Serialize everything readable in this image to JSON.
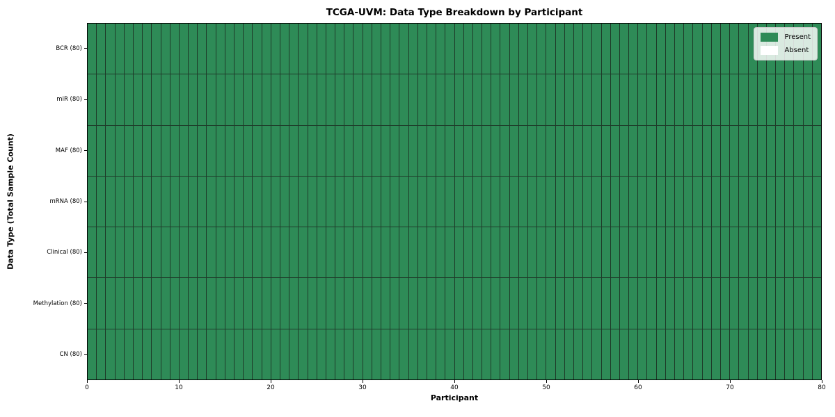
{
  "chart_data": {
    "type": "heatmap",
    "title": "TCGA-UVM: Data Type Breakdown by Participant",
    "xlabel": "Participant",
    "ylabel": "Data Type (Total Sample Count)",
    "xlim": [
      0,
      80
    ],
    "x_ticks": [
      0,
      10,
      20,
      30,
      40,
      50,
      60,
      70,
      80
    ],
    "n_participants": 80,
    "rows": [
      {
        "label": "BCR (80)",
        "data_type": "BCR",
        "total_samples": 80,
        "present_count": 80,
        "absent_count": 0
      },
      {
        "label": "miR (80)",
        "data_type": "miR",
        "total_samples": 80,
        "present_count": 80,
        "absent_count": 0
      },
      {
        "label": "MAF (80)",
        "data_type": "MAF",
        "total_samples": 80,
        "present_count": 80,
        "absent_count": 0
      },
      {
        "label": "mRNA (80)",
        "data_type": "mRNA",
        "total_samples": 80,
        "present_count": 80,
        "absent_count": 0
      },
      {
        "label": "Clinical (80)",
        "data_type": "Clinical",
        "total_samples": 80,
        "present_count": 80,
        "absent_count": 0
      },
      {
        "label": "Methylation (80)",
        "data_type": "Methylation",
        "total_samples": 80,
        "present_count": 80,
        "absent_count": 0
      },
      {
        "label": "CN (80)",
        "data_type": "CN",
        "total_samples": 80,
        "present_count": 80,
        "absent_count": 0
      }
    ],
    "legend": {
      "position": "upper right",
      "entries": [
        {
          "label": "Present",
          "color": "#2e8b57"
        },
        {
          "label": "Absent",
          "color": "#ffffff"
        }
      ]
    },
    "colors": {
      "present": "#2e8b57",
      "absent": "#ffffff",
      "cell_edge": "#1e3a29",
      "spine": "#000000",
      "background": "#ffffff"
    }
  }
}
